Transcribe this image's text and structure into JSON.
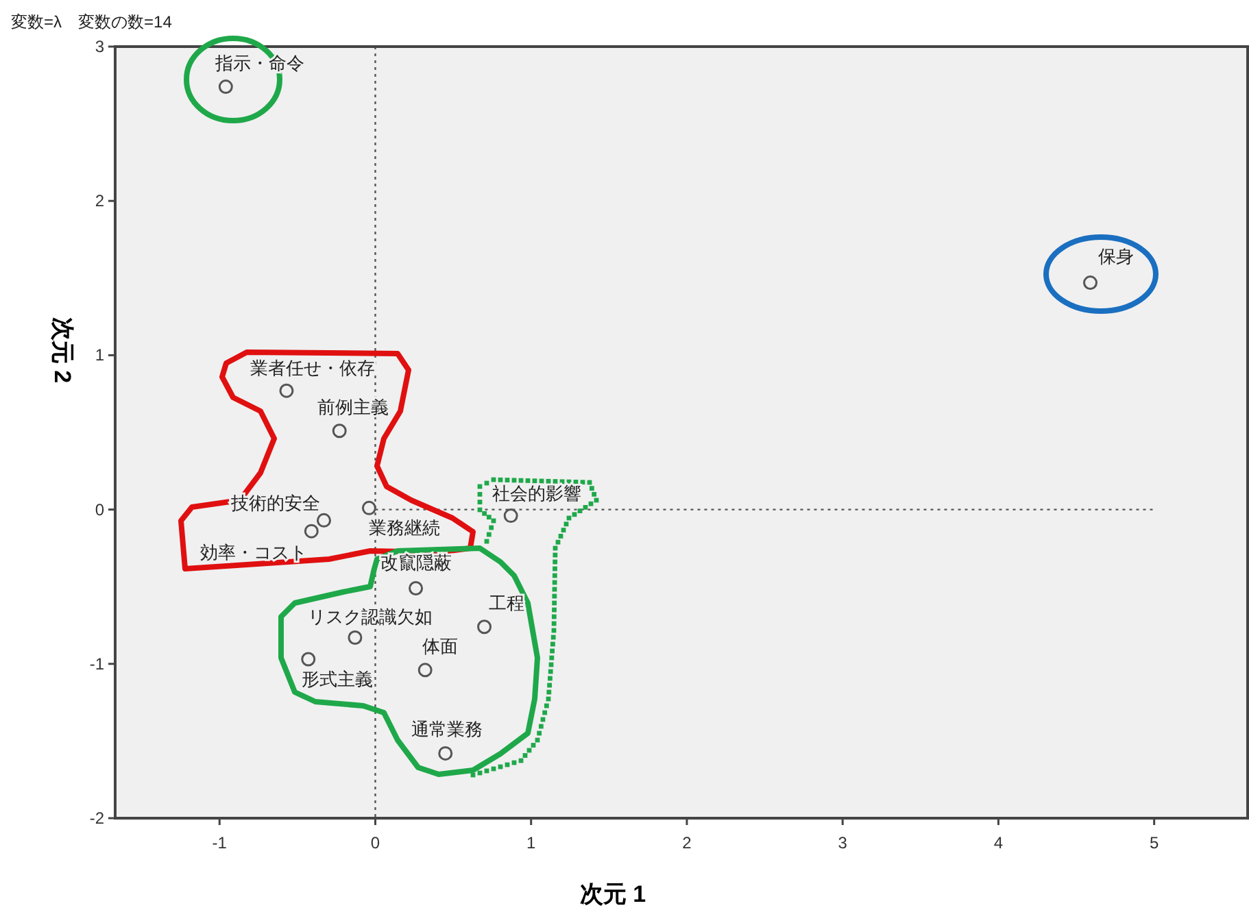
{
  "chart_data": {
    "type": "scatter",
    "title": "変数=λ　変数の数=14",
    "xlabel": "次元 1",
    "ylabel": "次元 2",
    "x": [
      -0.96,
      4.59,
      -0.57,
      -0.23,
      -0.33,
      -0.41,
      -0.04,
      0.87,
      0.26,
      -0.13,
      0.7,
      0.32,
      -0.43,
      0.45
    ],
    "values": [
      2.74,
      1.47,
      0.77,
      0.51,
      -0.07,
      -0.14,
      0.01,
      -0.04,
      -0.51,
      -0.83,
      -0.76,
      -1.04,
      -0.97,
      -1.58
    ],
    "color": "#555555",
    "marker": "circle",
    "xlim": [
      -1.67,
      5.6
    ],
    "ylim": [
      -2,
      3
    ],
    "xticks": [
      -1,
      0,
      1,
      2,
      3,
      4,
      5
    ],
    "yticks": [
      -2,
      -1,
      0,
      1,
      2,
      3
    ],
    "ref_lines": [
      {
        "axis": "x",
        "value": 0,
        "color": "#555555",
        "line_style": "dotted"
      },
      {
        "axis": "y",
        "value": 0,
        "color": "#555555",
        "line_style": "dotted"
      }
    ],
    "annotations": [
      {
        "text": "指示・命令",
        "x": -0.96,
        "y": 2.74
      },
      {
        "text": "保身",
        "x": 4.59,
        "y": 1.47
      },
      {
        "text": "業者任せ・依存",
        "x": -0.57,
        "y": 0.77
      },
      {
        "text": "前例主義",
        "x": -0.23,
        "y": 0.51
      },
      {
        "text": "技術的安全",
        "x": -0.33,
        "y": -0.07
      },
      {
        "text": "効率・コスト",
        "x": -0.41,
        "y": -0.14
      },
      {
        "text": "業務継続",
        "x": -0.04,
        "y": 0.01
      },
      {
        "text": "社会的影響",
        "x": 0.87,
        "y": -0.04
      },
      {
        "text": "改竄隠蔽",
        "x": 0.26,
        "y": -0.51
      },
      {
        "text": "リスク認識欠如",
        "x": -0.13,
        "y": -0.83
      },
      {
        "text": "工程",
        "x": 0.7,
        "y": -0.76
      },
      {
        "text": "体面",
        "x": 0.32,
        "y": -1.04
      },
      {
        "text": "形式主義",
        "x": -0.43,
        "y": -0.97
      },
      {
        "text": "通常業務",
        "x": 0.45,
        "y": -1.58
      }
    ]
  }
}
